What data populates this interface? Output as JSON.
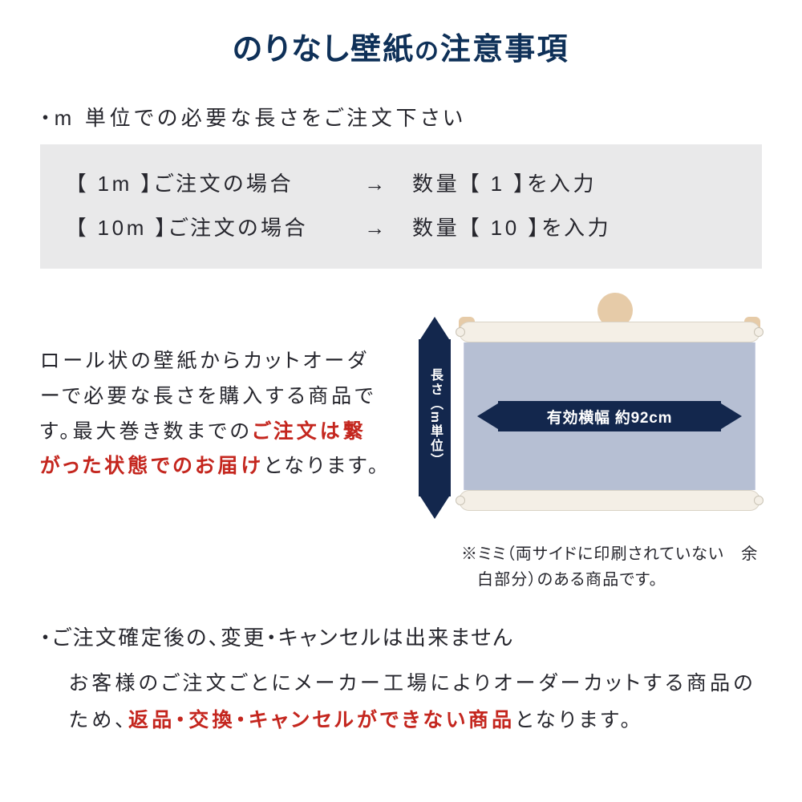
{
  "colors": {
    "title": "#0e3058",
    "text": "#26262d",
    "emphasis": "#c4261e",
    "arrow_fill": "#13274d",
    "gray_box_bg": "#e9e9ea",
    "sheet_bg": "#b6bfd3",
    "roll_bg": "#f4efe6",
    "skin": "#e6cba8"
  },
  "title_main": "のりなし壁紙",
  "title_joiner": "の",
  "title_sub": "注意事項",
  "bullet1": "・m 単位での必要な長さをご注文下さい",
  "example_rows": [
    {
      "left": "【  1m  】ご注文の場合",
      "arrow": "→",
      "right": "数量 【  1  】を入力"
    },
    {
      "left": "【 10m 】ご注文の場合",
      "arrow": "→",
      "right": "数量 【  10  】を入力"
    }
  ],
  "desc_part1": "ロール状の壁紙からカットオーダーで必要な長さを購入する商品です。最大巻き数までの",
  "desc_red": "ご注文は繋がった状態でのお届け",
  "desc_part2": "となります。",
  "vertical_arrow_label": "長さ（m単位）",
  "horizontal_arrow_label": "有効横幅 約92cm",
  "mimi_note": "※ミミ（両サイドに印刷されていない　余白部分）のある商品です。",
  "bullet2": "・ご注文確定後の、変更・キャンセルは出来ません",
  "body2_part1": "お客様のご注文ごとにメーカー工場によりオーダーカットする商品のため、",
  "body2_red": "返品・交換・キャンセルができない商品",
  "body2_part2": "となります。"
}
